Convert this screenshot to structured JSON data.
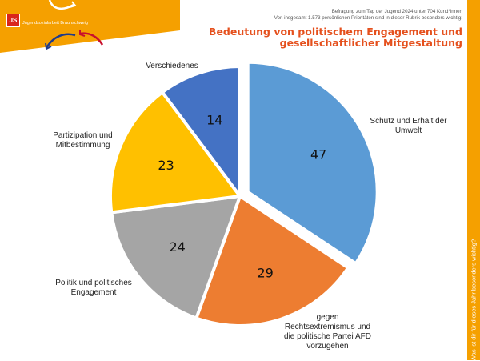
{
  "logo": {
    "text": "Jugendsozialarbeit Braunschweig",
    "mark": "JS",
    "colors": {
      "banner": "#f5a000",
      "mark": "#d9261c",
      "arrow_blue": "#1f3a8a",
      "arrow_red": "#c8102e"
    }
  },
  "header": {
    "meta_line1": "Befragung zum Tag der Jugend 2024 unter 704 Kund*innen",
    "meta_line2": "Von insgesamt 1.573 persönlichen Prioritäten sind in dieser Rubrik besonders wichtig:",
    "title_line1": "Bedeutung von politischem Engagement und",
    "title_line2": "gesellschaftlicher Mitgestaltung"
  },
  "sidebar": {
    "text": "Was ist dir für dieses Jahr besonders wichtig?",
    "color": "#f5a000"
  },
  "chart_data": {
    "type": "pie",
    "title": "Bedeutung von politischem Engagement und gesellschaftlicher Mitgestaltung",
    "exploded_slice": "Schutz und Erhalt der Umwelt",
    "slices": [
      {
        "label_lines": [
          "Schutz und Erhalt der",
          "Umwelt"
        ],
        "value": 47,
        "color": "#5b9bd5"
      },
      {
        "label_lines": [
          "gegen",
          "Rechtsextremismus und",
          "die politische Partei AFD",
          "vorzugehen"
        ],
        "value": 29,
        "color": "#ed7d31"
      },
      {
        "label_lines": [
          "Politik und politisches",
          "Engagement"
        ],
        "value": 24,
        "color": "#a5a5a5"
      },
      {
        "label_lines": [
          "Partizipation und",
          "Mitbestimmung"
        ],
        "value": 23,
        "color": "#ffc000"
      },
      {
        "label_lines": [
          "Verschiedenes"
        ],
        "value": 14,
        "color": "#4472c4"
      }
    ]
  }
}
